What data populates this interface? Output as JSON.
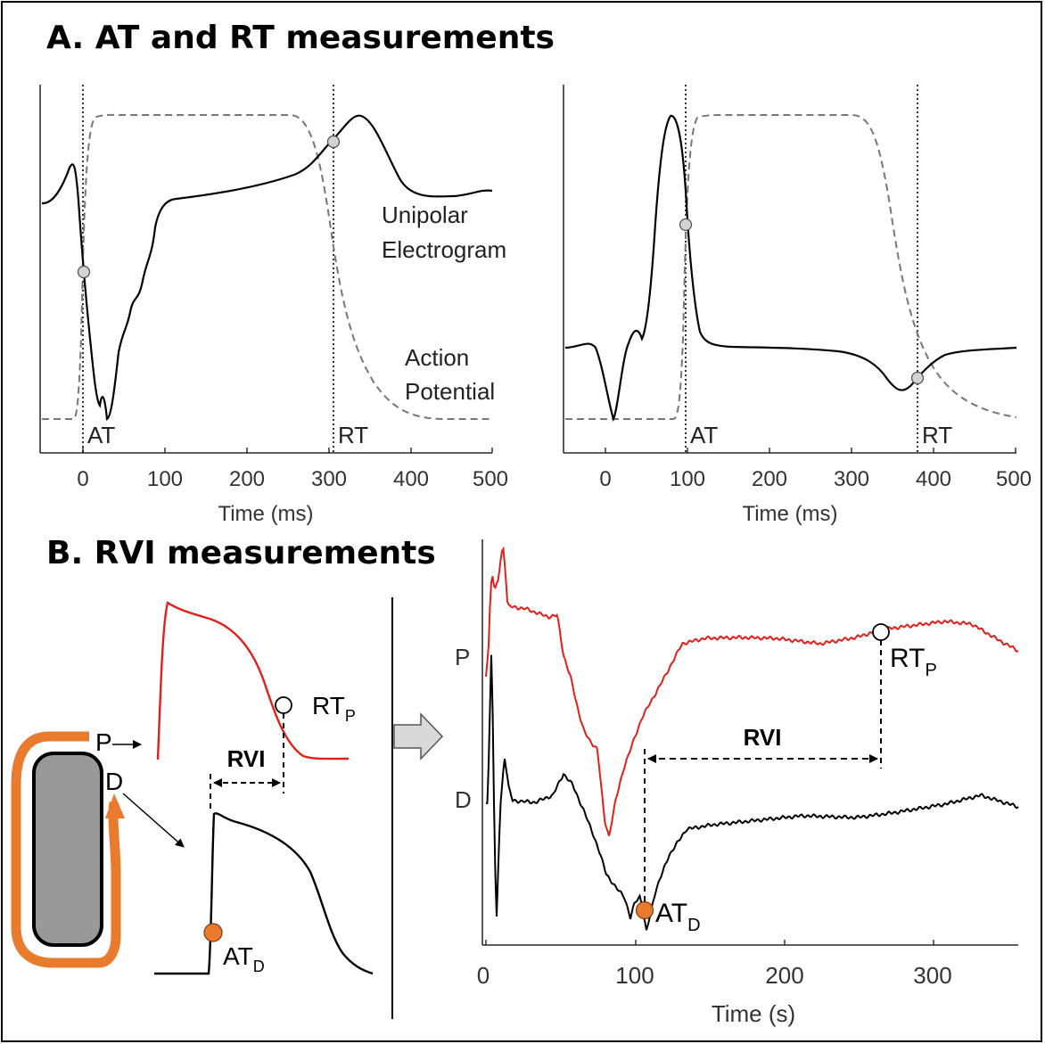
{
  "panel_a": {
    "title": "A. AT and RT measurements",
    "left_plot": {
      "at_label": "AT",
      "rt_label": "RT",
      "electrogram_label_line1": "Unipolar",
      "electrogram_label_line2": "Electrogram",
      "ap_label_line1": "Action",
      "ap_label_line2": "Potential",
      "xlabel": "Time (ms)",
      "x_ticks": [
        "0",
        "100",
        "200",
        "300",
        "400",
        "500"
      ]
    },
    "right_plot": {
      "at_label": "AT",
      "rt_label": "RT",
      "xlabel": "Time (ms)",
      "x_ticks": [
        "0",
        "100",
        "200",
        "300",
        "400",
        "500"
      ]
    }
  },
  "panel_b": {
    "title": "B. RVI measurements",
    "schematic": {
      "p_label": "P",
      "d_label": "D",
      "rvi_label": "RVI",
      "rt_label": "RT",
      "rt_sub": "P",
      "at_label": "AT",
      "at_sub": "D"
    },
    "plot": {
      "p_label": "P",
      "d_label": "D",
      "rvi_label": "RVI",
      "rt_label": "RT",
      "rt_sub": "P",
      "at_label": "AT",
      "at_sub": "D",
      "xlabel": "Time (s)",
      "x_ticks": [
        "0",
        "100",
        "200",
        "300"
      ]
    }
  },
  "colors": {
    "proximal_trace": "#e0201b",
    "distal_trace": "#000000",
    "orange_marker": "#e87b2e",
    "ap_dashed": "#777777",
    "tissue_fill": "#999999",
    "arrow_fill": "#d9d9d9"
  }
}
